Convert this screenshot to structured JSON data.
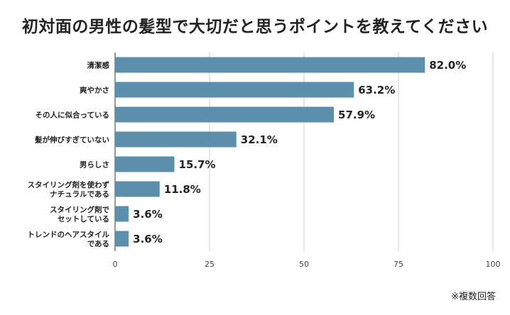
{
  "chart_data": {
    "type": "bar",
    "orientation": "horizontal",
    "title": "初対面の男性の髪型で大切だと思うポイントを教えてください",
    "categories": [
      "清潔感",
      "爽やかさ",
      "その人に似合っている",
      "髪が伸びすぎていない",
      "男らしさ",
      "スタイリング剤を使わず\nナチュラルである",
      "スタイリング剤で\nセットしている",
      "トレンドのヘアスタイル\nである"
    ],
    "values": [
      82.0,
      63.2,
      57.9,
      32.1,
      15.7,
      11.8,
      3.6,
      3.6
    ],
    "value_labels": [
      "82.0%",
      "63.2%",
      "57.9%",
      "32.1%",
      "15.7%",
      "11.8%",
      "3.6%",
      "3.6%"
    ],
    "xlim": [
      0,
      100
    ],
    "xticks": [
      0,
      25,
      50,
      75,
      100
    ],
    "xlabel": "",
    "ylabel": "",
    "grid": true,
    "bar_color": "#5b8fab",
    "grid_color": "#cccccc",
    "note": "※複数回答"
  }
}
